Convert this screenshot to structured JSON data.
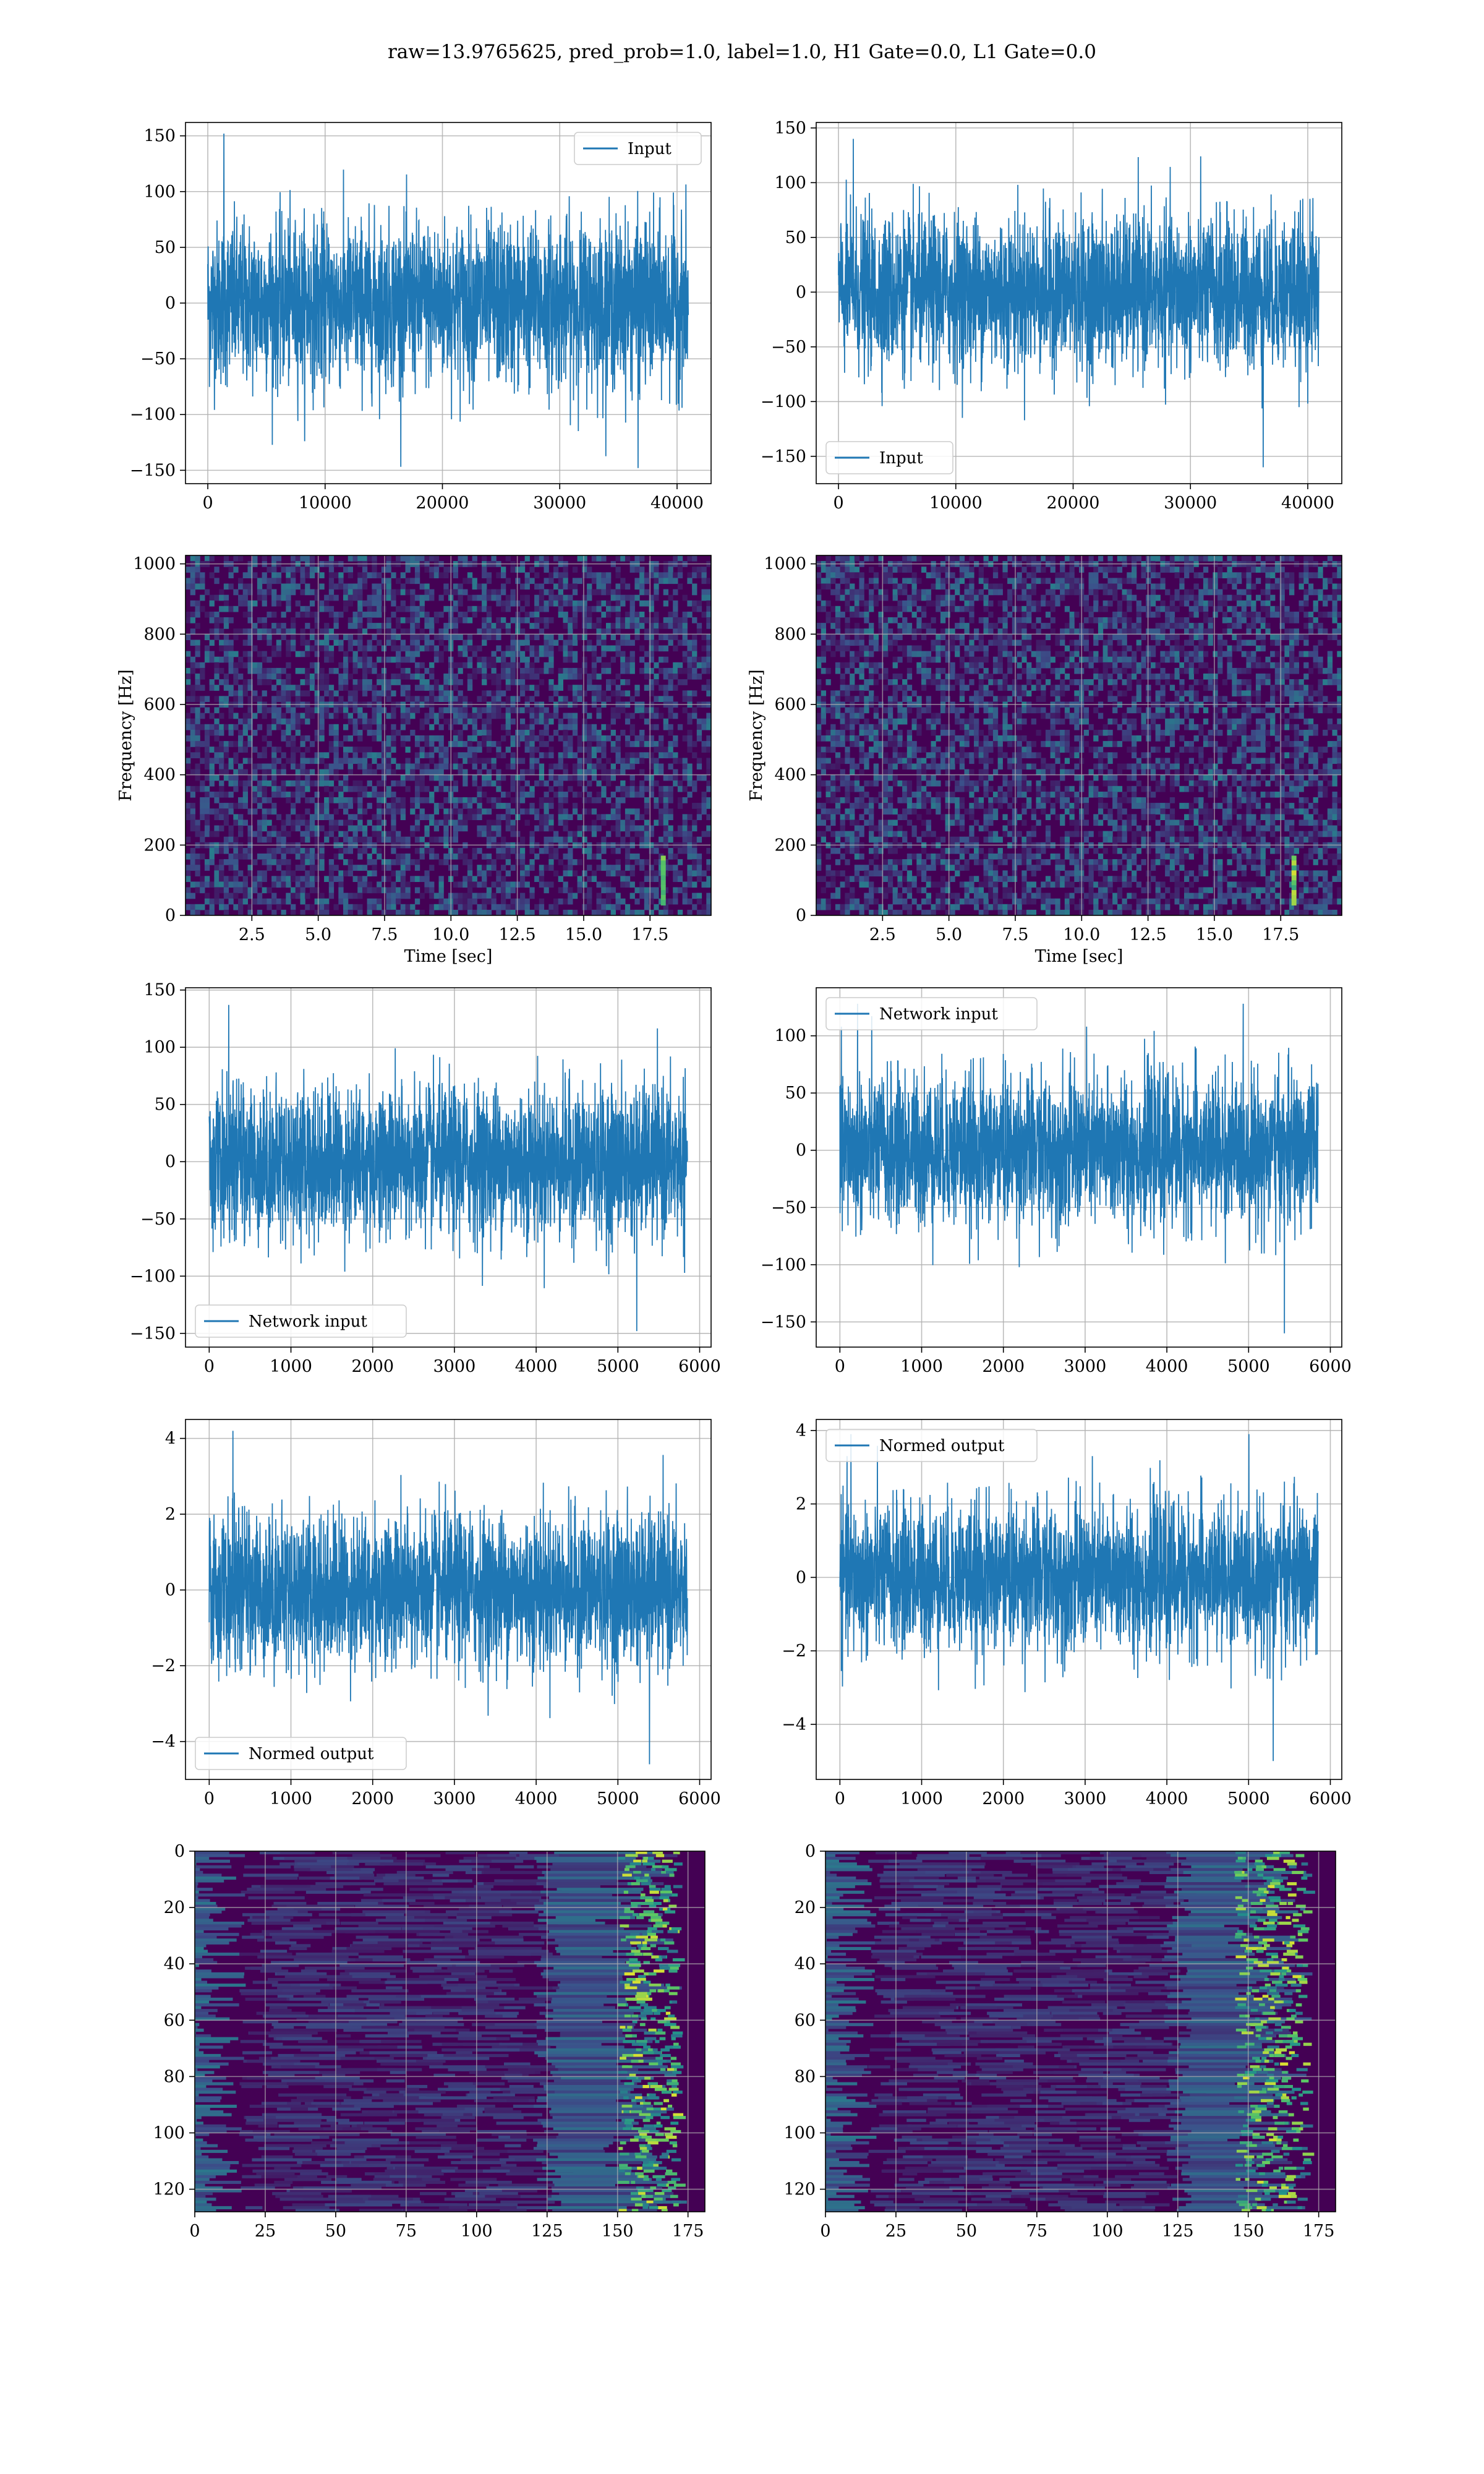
{
  "suptitle": "raw=13.9765625, pred_prob=1.0, label=1.0, H1 Gate=0.0, L1 Gate=0.0",
  "colors": {
    "line": "#1f77b4",
    "grid": "#b0b0b0",
    "axes_edge": "#000000",
    "viridis_low": "#440154",
    "viridis_mid": "#21918c",
    "viridis_high": "#fde725"
  },
  "chart_data": [
    {
      "id": "r1c1",
      "type": "line",
      "legend": "Input",
      "legend_loc": "upper right",
      "xlim": [
        -1900,
        42900
      ],
      "ylim": [
        -162,
        162
      ],
      "xticks": [
        0,
        10000,
        20000,
        30000,
        40000
      ],
      "xtick_labels": [
        "0",
        "10000",
        "20000",
        "30000",
        "40000"
      ],
      "yticks": [
        -150,
        -100,
        -50,
        0,
        50,
        100,
        150
      ],
      "ytick_labels": [
        "−150",
        "−100",
        "−50",
        "0",
        "50",
        "100",
        "150"
      ],
      "xlabel": "",
      "ylabel": "",
      "grid": true,
      "series": [
        {
          "x_start": 0,
          "x_end": 40960,
          "n": 40960,
          "typical_range": [
            -95,
            95
          ],
          "extreme_min": -148,
          "extreme_max": 152
        }
      ]
    },
    {
      "id": "r1c2",
      "type": "line",
      "legend": "Input",
      "legend_loc": "lower left",
      "xlim": [
        -1900,
        42900
      ],
      "ylim": [
        -175,
        155
      ],
      "xticks": [
        0,
        10000,
        20000,
        30000,
        40000
      ],
      "xtick_labels": [
        "0",
        "10000",
        "20000",
        "30000",
        "40000"
      ],
      "yticks": [
        -150,
        -100,
        -50,
        0,
        50,
        100,
        150
      ],
      "ytick_labels": [
        "−150",
        "−100",
        "−50",
        "0",
        "50",
        "100",
        "150"
      ],
      "xlabel": "",
      "ylabel": "",
      "grid": true,
      "series": [
        {
          "x_start": 0,
          "x_end": 40960,
          "n": 40960,
          "typical_range": [
            -90,
            90
          ],
          "extreme_min": -160,
          "extreme_max": 140
        }
      ]
    },
    {
      "id": "r2c1",
      "type": "heatmap",
      "xlim": [
        0,
        19.8
      ],
      "ylim": [
        0,
        1024
      ],
      "xticks": [
        2.5,
        5.0,
        7.5,
        10.0,
        12.5,
        15.0,
        17.5
      ],
      "xtick_labels": [
        "2.5",
        "5.0",
        "7.5",
        "10.0",
        "12.5",
        "15.0",
        "17.5"
      ],
      "yticks": [
        0,
        200,
        400,
        600,
        800,
        1000
      ],
      "ytick_labels": [
        "0",
        "200",
        "400",
        "600",
        "800",
        "1000"
      ],
      "xlabel": "Time [sec]",
      "ylabel": "Frequency [Hz]",
      "grid": true,
      "colormap": "viridis",
      "hot_spot": {
        "time": 18.0,
        "freq_range": [
          30,
          170
        ]
      }
    },
    {
      "id": "r2c2",
      "type": "heatmap",
      "xlim": [
        0,
        19.8
      ],
      "ylim": [
        0,
        1024
      ],
      "xticks": [
        2.5,
        5.0,
        7.5,
        10.0,
        12.5,
        15.0,
        17.5
      ],
      "xtick_labels": [
        "2.5",
        "5.0",
        "7.5",
        "10.0",
        "12.5",
        "15.0",
        "17.5"
      ],
      "yticks": [
        0,
        200,
        400,
        600,
        800,
        1000
      ],
      "ytick_labels": [
        "0",
        "200",
        "400",
        "600",
        "800",
        "1000"
      ],
      "xlabel": "Time [sec]",
      "ylabel": "Frequency [Hz]",
      "grid": true,
      "colormap": "viridis",
      "hot_spot": {
        "time": 18.0,
        "freq_range": [
          30,
          170
        ]
      }
    },
    {
      "id": "r3c1",
      "type": "line",
      "legend": "Network input",
      "legend_loc": "lower left",
      "xlim": [
        -290,
        6140
      ],
      "ylim": [
        -162,
        152
      ],
      "xticks": [
        0,
        1000,
        2000,
        3000,
        4000,
        5000,
        6000
      ],
      "xtick_labels": [
        "0",
        "1000",
        "2000",
        "3000",
        "4000",
        "5000",
        "6000"
      ],
      "yticks": [
        -150,
        -100,
        -50,
        0,
        50,
        100,
        150
      ],
      "ytick_labels": [
        "−150",
        "−100",
        "−50",
        "0",
        "50",
        "100",
        "150"
      ],
      "xlabel": "",
      "ylabel": "",
      "grid": true,
      "series": [
        {
          "x_start": 0,
          "x_end": 5850,
          "n": 5850,
          "typical_range": [
            -85,
            85
          ],
          "extreme_min": -148,
          "extreme_max": 137
        }
      ]
    },
    {
      "id": "r3c2",
      "type": "line",
      "legend": "Network input",
      "legend_loc": "upper left",
      "xlim": [
        -290,
        6140
      ],
      "ylim": [
        -172,
        142
      ],
      "xticks": [
        0,
        1000,
        2000,
        3000,
        4000,
        5000,
        6000
      ],
      "xtick_labels": [
        "0",
        "1000",
        "2000",
        "3000",
        "4000",
        "5000",
        "6000"
      ],
      "yticks": [
        -150,
        -100,
        -50,
        0,
        50,
        100
      ],
      "ytick_labels": [
        "−150",
        "−100",
        "−50",
        "0",
        "50",
        "100"
      ],
      "xlabel": "",
      "ylabel": "",
      "grid": true,
      "series": [
        {
          "x_start": 0,
          "x_end": 5850,
          "n": 5850,
          "typical_range": [
            -85,
            85
          ],
          "extreme_min": -160,
          "extreme_max": 128
        }
      ]
    },
    {
      "id": "r4c1",
      "type": "line",
      "legend": "Normed output",
      "legend_loc": "lower left",
      "xlim": [
        -290,
        6140
      ],
      "ylim": [
        -5.0,
        4.5
      ],
      "xticks": [
        0,
        1000,
        2000,
        3000,
        4000,
        5000,
        6000
      ],
      "xtick_labels": [
        "0",
        "1000",
        "2000",
        "3000",
        "4000",
        "5000",
        "6000"
      ],
      "yticks": [
        -4,
        -2,
        0,
        2,
        4
      ],
      "ytick_labels": [
        "−4",
        "−2",
        "0",
        "2",
        "4"
      ],
      "xlabel": "",
      "ylabel": "",
      "grid": true,
      "series": [
        {
          "x_start": 0,
          "x_end": 5850,
          "n": 5850,
          "typical_range": [
            -2.6,
            2.6
          ],
          "extreme_min": -4.6,
          "extreme_max": 4.2
        }
      ]
    },
    {
      "id": "r4c2",
      "type": "line",
      "legend": "Normed output",
      "legend_loc": "upper left",
      "xlim": [
        -290,
        6140
      ],
      "ylim": [
        -5.5,
        4.3
      ],
      "xticks": [
        0,
        1000,
        2000,
        3000,
        4000,
        5000,
        6000
      ],
      "xtick_labels": [
        "0",
        "1000",
        "2000",
        "3000",
        "4000",
        "5000",
        "6000"
      ],
      "yticks": [
        -4,
        -2,
        0,
        2,
        4
      ],
      "ytick_labels": [
        "−4",
        "−2",
        "0",
        "2",
        "4"
      ],
      "xlabel": "",
      "ylabel": "",
      "grid": true,
      "series": [
        {
          "x_start": 0,
          "x_end": 5850,
          "n": 5850,
          "typical_range": [
            -2.6,
            2.6
          ],
          "extreme_min": -5.0,
          "extreme_max": 3.9
        }
      ]
    },
    {
      "id": "r5c1",
      "type": "heatmap",
      "xlim": [
        0,
        181
      ],
      "ylim": [
        128,
        0
      ],
      "xticks": [
        0,
        25,
        50,
        75,
        100,
        125,
        150,
        175
      ],
      "xtick_labels": [
        "0",
        "25",
        "50",
        "75",
        "100",
        "125",
        "150",
        "175"
      ],
      "yticks": [
        0,
        20,
        40,
        60,
        80,
        100,
        120
      ],
      "ytick_labels": [
        "0",
        "20",
        "40",
        "60",
        "80",
        "100",
        "120"
      ],
      "xlabel": "",
      "ylabel": "",
      "grid": true,
      "colormap": "viridis",
      "hot_band": {
        "x_range": [
          150,
          170
        ]
      }
    },
    {
      "id": "r5c2",
      "type": "heatmap",
      "xlim": [
        0,
        181
      ],
      "ylim": [
        128,
        0
      ],
      "xticks": [
        0,
        25,
        50,
        75,
        100,
        125,
        150,
        175
      ],
      "xtick_labels": [
        "0",
        "25",
        "50",
        "75",
        "100",
        "125",
        "150",
        "175"
      ],
      "yticks": [
        0,
        20,
        40,
        60,
        80,
        100,
        120
      ],
      "ytick_labels": [
        "0",
        "20",
        "40",
        "60",
        "80",
        "100",
        "120"
      ],
      "xlabel": "",
      "ylabel": "",
      "grid": true,
      "colormap": "viridis",
      "hot_band": {
        "x_range": [
          145,
          170
        ]
      }
    }
  ]
}
